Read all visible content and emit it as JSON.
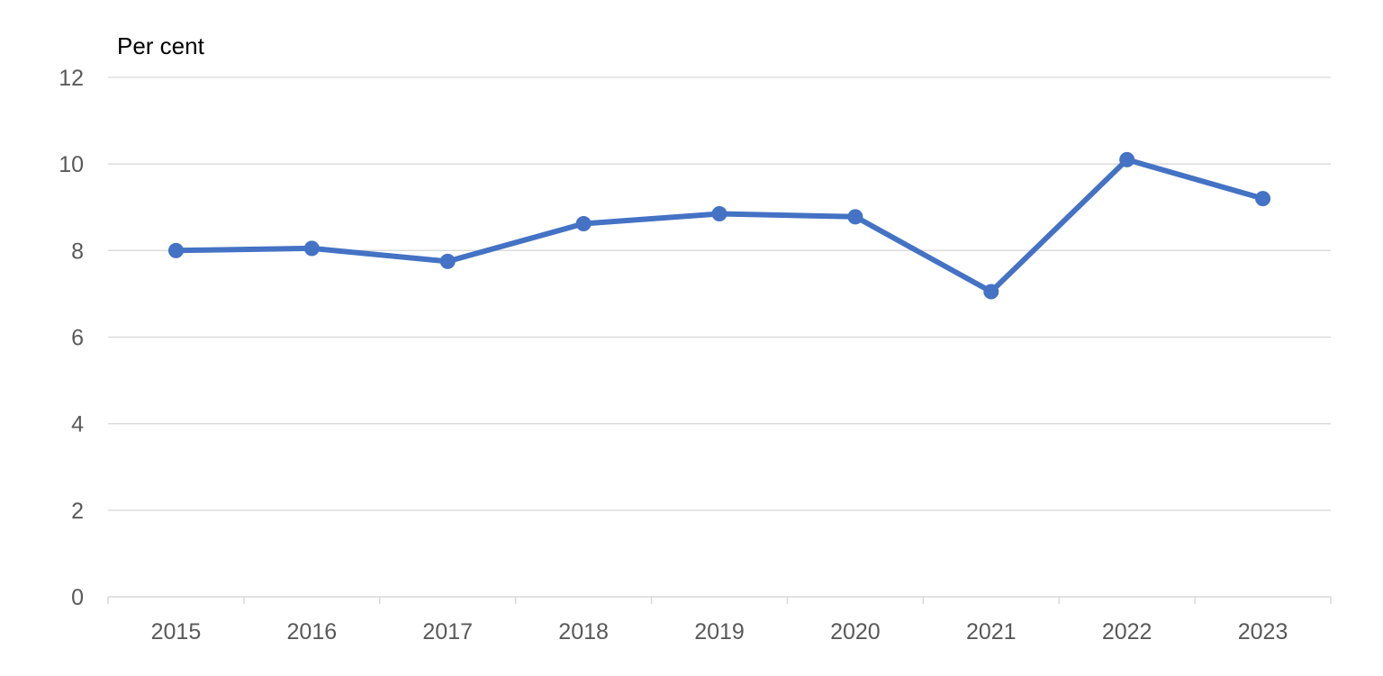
{
  "chart_data": {
    "type": "line",
    "title": "",
    "xlabel": "",
    "ylabel": "Per cent",
    "categories": [
      "2015",
      "2016",
      "2017",
      "2018",
      "2019",
      "2020",
      "2021",
      "2022",
      "2023"
    ],
    "series": [
      {
        "values": [
          8.0,
          8.05,
          7.75,
          8.62,
          8.85,
          8.78,
          7.05,
          10.1,
          9.2
        ]
      }
    ],
    "ylim": [
      0,
      12
    ],
    "yticks": [
      "0",
      "2",
      "4",
      "6",
      "8",
      "10",
      "12"
    ],
    "grid": true,
    "legend": "none",
    "colors": {
      "line": "#4472C4",
      "grid": "#D9D9D9",
      "axis": "#D9D9D9",
      "tick_text": "#595959"
    }
  }
}
